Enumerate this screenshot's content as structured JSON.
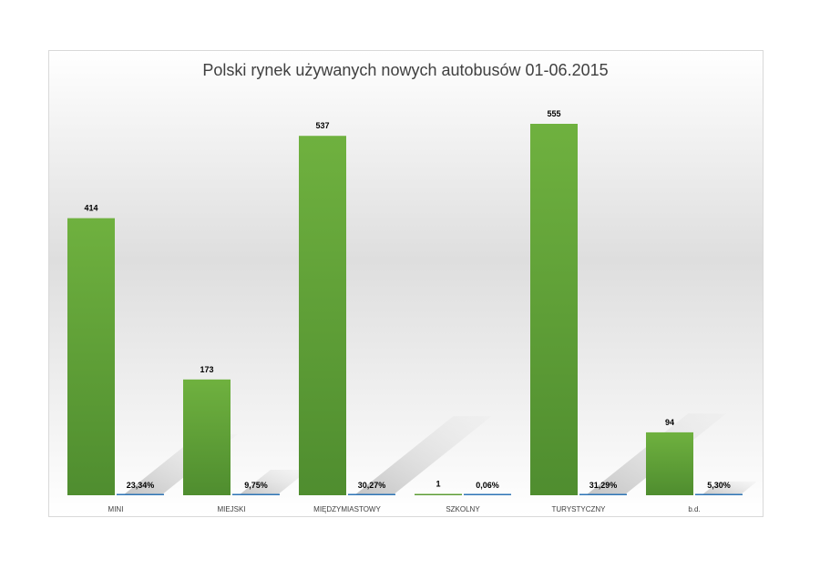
{
  "chart_data": {
    "type": "bar",
    "title": "Polski rynek używanych nowych autobusów 01-06.2015",
    "categories": [
      "MINI",
      "MIEJSKI",
      "MIĘDZYMIASTOWY",
      "SZKOLNY",
      "TURYSTYCZNY",
      "b.d."
    ],
    "series": [
      {
        "values": [
          414,
          173,
          537,
          1,
          555,
          94
        ]
      },
      {
        "values": [
          23.34,
          9.75,
          30.27,
          0.06,
          31.29,
          5.3
        ]
      }
    ],
    "value_labels": [
      "414",
      "173",
      "537",
      "1",
      "555",
      "94"
    ],
    "percent_labels": [
      "23,34%",
      "9,75%",
      "30,27%",
      "0,06%",
      "31,29%",
      "5,30%"
    ],
    "ylim": [
      0,
      600
    ],
    "grid": false,
    "legend": "none",
    "colors": {
      "bar": "#6aaa3c",
      "bar_dark": "#4e8a2c",
      "percent_line": "#2e75b6",
      "shadow": "#d0d0d0"
    }
  }
}
